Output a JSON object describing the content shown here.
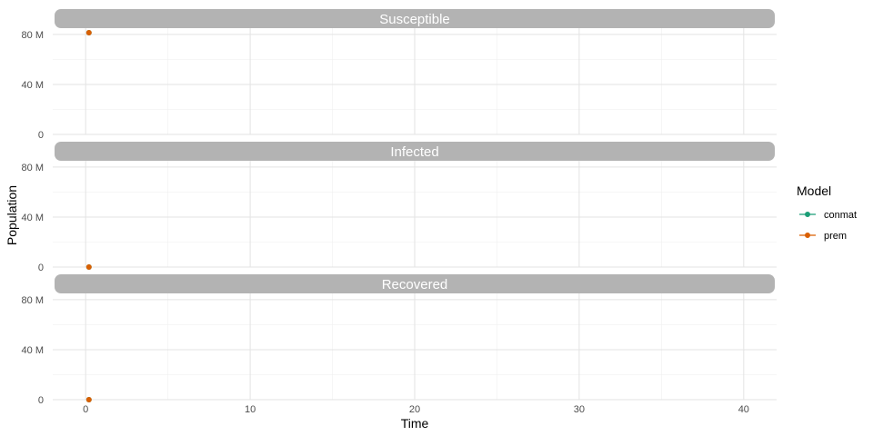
{
  "chart_data": {
    "type": "line",
    "layout": "faceted",
    "xlabel": "Time",
    "ylabel": "Population",
    "xlim": [
      -2,
      42
    ],
    "ylim": [
      0,
      85000000
    ],
    "x_ticks": [
      0,
      10,
      20,
      30,
      40
    ],
    "y_ticks": [
      {
        "value": 0,
        "label": "0"
      },
      {
        "value": 40000000,
        "label": "40 M"
      },
      {
        "value": 80000000,
        "label": "80 M"
      }
    ],
    "grid": true,
    "legend": {
      "title": "Model",
      "position": "right",
      "entries": [
        {
          "name": "conmat",
          "color": "#1b9e77"
        },
        {
          "name": "prem",
          "color": "#d95f02"
        }
      ]
    },
    "facets": [
      {
        "title": "Susceptible",
        "series": [
          {
            "name": "conmat",
            "color": "#1b9e77",
            "points": [
              {
                "x": 0.2,
                "y": 81400000
              }
            ]
          },
          {
            "name": "prem",
            "color": "#d95f02",
            "points": [
              {
                "x": 0.2,
                "y": 81400000
              }
            ]
          }
        ]
      },
      {
        "title": "Infected",
        "series": [
          {
            "name": "conmat",
            "color": "#1b9e77",
            "points": [
              {
                "x": 0.2,
                "y": 0
              }
            ]
          },
          {
            "name": "prem",
            "color": "#d95f02",
            "points": [
              {
                "x": 0.2,
                "y": 0
              }
            ]
          }
        ]
      },
      {
        "title": "Recovered",
        "series": [
          {
            "name": "conmat",
            "color": "#1b9e77",
            "points": [
              {
                "x": 0.2,
                "y": 0
              }
            ]
          },
          {
            "name": "prem",
            "color": "#d95f02",
            "points": [
              {
                "x": 0.2,
                "y": 0
              }
            ]
          }
        ]
      }
    ]
  }
}
